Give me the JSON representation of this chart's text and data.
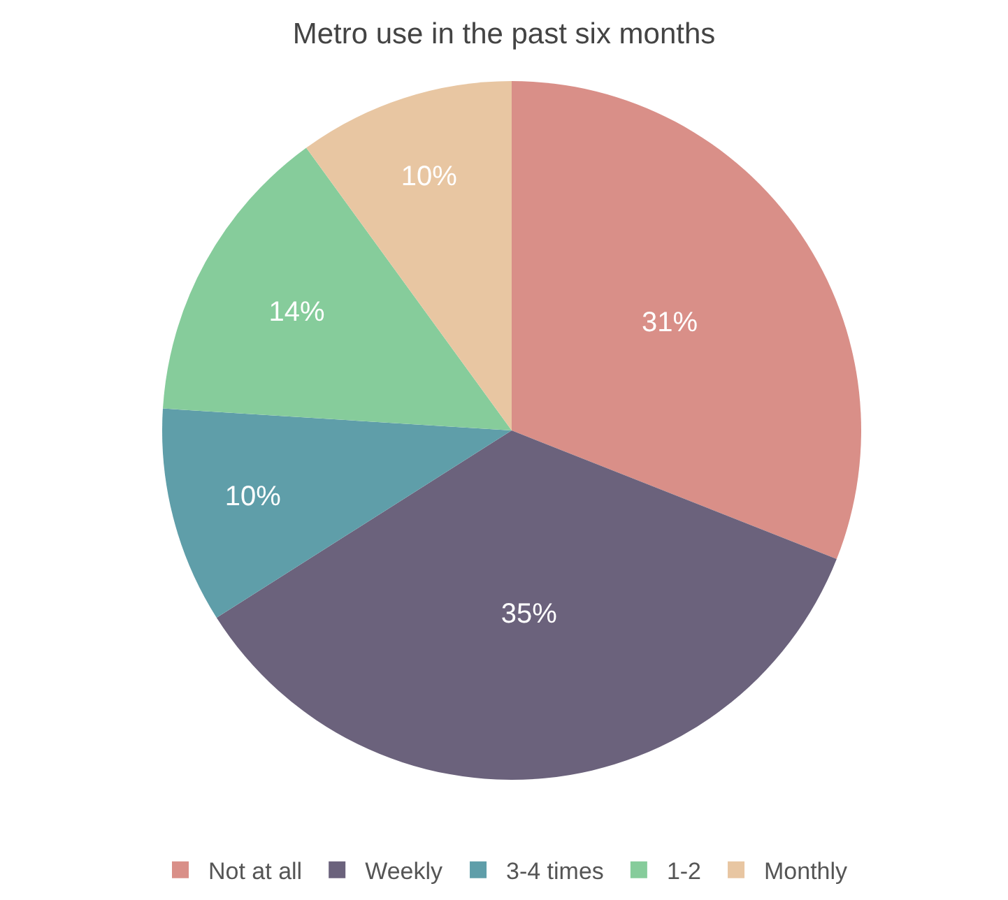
{
  "chart_data": {
    "type": "pie",
    "title": "Metro use in the past six months",
    "categories": [
      "Not at all",
      "Weekly",
      "3-4 times",
      "1-2",
      "Monthly"
    ],
    "values": [
      31,
      35,
      10,
      14,
      10
    ],
    "value_labels": [
      "31%",
      "35%",
      "10%",
      "14%",
      "10%"
    ],
    "colors": [
      "#d98f88",
      "#6b627c",
      "#5f9ea9",
      "#86cc9b",
      "#e8c6a2"
    ],
    "legend": "bottom"
  }
}
